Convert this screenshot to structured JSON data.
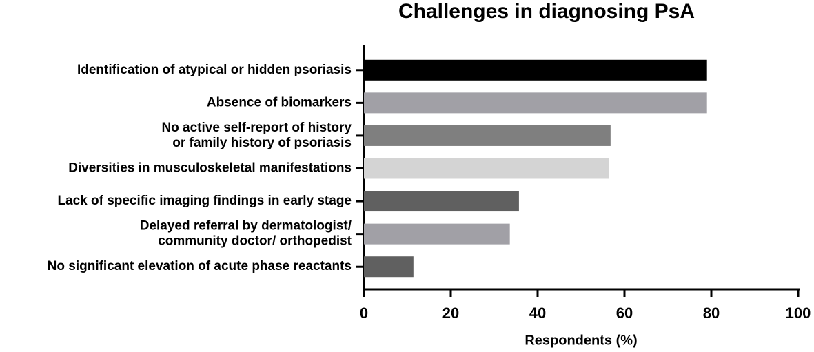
{
  "chart_data": {
    "type": "bar",
    "orientation": "horizontal",
    "title": "Challenges in diagnosing PsA",
    "categories": [
      "Identification of atypical or hidden psoriasis",
      "Absence of biomarkers",
      "No active self-report of history\nor family history of psoriasis",
      "Diversities in musculoskeletal manifestations",
      "Lack of specific imaging findings in early stage",
      "Delayed referral by dermatologist/\ncommunity doctor/ orthopedist",
      "No significant elevation of acute phase reactants"
    ],
    "values": [
      79,
      79,
      56.8,
      56.5,
      35.7,
      33.6,
      11.4
    ],
    "colors": [
      "#000000",
      "#a1a0a6",
      "#7f7f7f",
      "#d4d4d4",
      "#606060",
      "#a1a0a6",
      "#606060"
    ],
    "xlabel": "Respondents (%)",
    "xlim": [
      0,
      100
    ],
    "xticks": [
      0,
      20,
      40,
      60,
      80,
      100
    ],
    "grid": false
  }
}
